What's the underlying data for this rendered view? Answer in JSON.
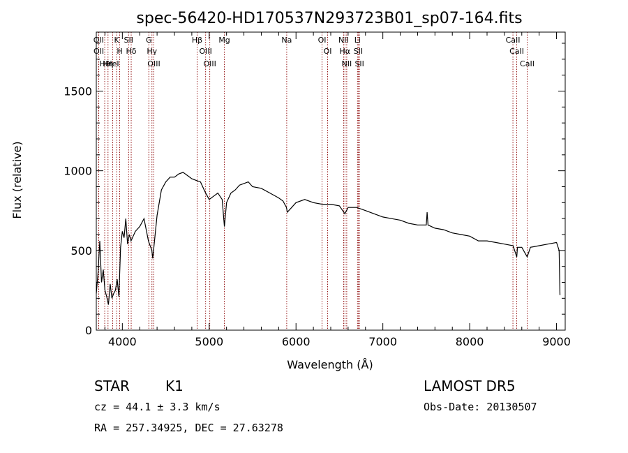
{
  "title": "spec-56420-HD170537N293723B01_sp07-164.fits",
  "chart_data": {
    "type": "line",
    "title": "spec-56420-HD170537N293723B01_sp07-164.fits",
    "xlabel": "Wavelength (Å)",
    "ylabel": "Flux (relative)",
    "xlim": [
      3700,
      9100
    ],
    "ylim": [
      0,
      1870
    ],
    "x_ticks": [
      4000,
      5000,
      6000,
      7000,
      8000,
      9000
    ],
    "y_ticks": [
      0,
      500,
      1000,
      1500
    ],
    "grid": false,
    "series": [
      {
        "x": [
          3700,
          3720,
          3740,
          3760,
          3780,
          3800,
          3820,
          3840,
          3860,
          3880,
          3900,
          3920,
          3940,
          3960,
          3980,
          4000,
          4020,
          4040,
          4060,
          4080,
          4100,
          4150,
          4200,
          4250,
          4300,
          4340,
          4350,
          4400,
          4450,
          4500,
          4550,
          4600,
          4650,
          4700,
          4750,
          4800,
          4850,
          4900,
          4950,
          5000,
          5050,
          5100,
          5150,
          5175,
          5200,
          5250,
          5300,
          5350,
          5400,
          5450,
          5500,
          5600,
          5700,
          5800,
          5850,
          5890,
          5900,
          5950,
          6000,
          6100,
          6200,
          6300,
          6400,
          6500,
          6563,
          6600,
          6700,
          6800,
          6900,
          7000,
          7100,
          7200,
          7300,
          7400,
          7500,
          7510,
          7520,
          7600,
          7700,
          7800,
          7900,
          8000,
          8100,
          8200,
          8300,
          8400,
          8500,
          8542,
          8550,
          8600,
          8662,
          8700,
          8800,
          8900,
          9000,
          9030,
          9040
        ],
        "y": [
          230,
          360,
          560,
          300,
          380,
          250,
          210,
          160,
          290,
          200,
          230,
          250,
          320,
          210,
          520,
          620,
          580,
          700,
          540,
          600,
          560,
          620,
          650,
          700,
          560,
          500,
          450,
          720,
          880,
          930,
          960,
          960,
          980,
          990,
          970,
          950,
          940,
          930,
          870,
          820,
          840,
          860,
          820,
          650,
          800,
          860,
          880,
          910,
          920,
          930,
          900,
          890,
          860,
          830,
          810,
          770,
          740,
          770,
          800,
          820,
          800,
          790,
          790,
          780,
          730,
          770,
          770,
          750,
          730,
          710,
          700,
          690,
          670,
          660,
          660,
          740,
          660,
          640,
          630,
          610,
          600,
          590,
          560,
          560,
          550,
          540,
          530,
          460,
          520,
          520,
          460,
          520,
          530,
          540,
          550,
          500,
          220
        ]
      }
    ],
    "spectral_lines": [
      {
        "label": "Hθ",
        "wl": 3797
      },
      {
        "label": "OII",
        "wl": 3727
      },
      {
        "label": "OII",
        "wl": 3729
      },
      {
        "label": "HeI",
        "wl": 3889
      },
      {
        "label": "Hη",
        "wl": 3835
      },
      {
        "label": "K",
        "wl": 3934
      },
      {
        "label": "H",
        "wl": 3969
      },
      {
        "label": "SII",
        "wl": 4072
      },
      {
        "label": "Hδ",
        "wl": 4102
      },
      {
        "label": "OIII",
        "wl": 4363
      },
      {
        "label": "Hγ",
        "wl": 4341
      },
      {
        "label": "G",
        "wl": 4305
      },
      {
        "label": "Hβ",
        "wl": 4861
      },
      {
        "label": "OIII",
        "wl": 4959
      },
      {
        "label": "OIII",
        "wl": 5007
      },
      {
        "label": "Mg",
        "wl": 5175
      },
      {
        "label": "Na",
        "wl": 5893
      },
      {
        "label": "OI",
        "wl": 6300
      },
      {
        "label": "OI",
        "wl": 6364
      },
      {
        "label": "Hα",
        "wl": 6563
      },
      {
        "label": "NII",
        "wl": 6548
      },
      {
        "label": "NII",
        "wl": 6584
      },
      {
        "label": "SII",
        "wl": 6717
      },
      {
        "label": "Li",
        "wl": 6708
      },
      {
        "label": "SII",
        "wl": 6731
      },
      {
        "label": "CaII",
        "wl": 8498
      },
      {
        "label": "CaII",
        "wl": 8542
      },
      {
        "label": "CaII",
        "wl": 8662
      }
    ]
  },
  "footer": {
    "object_class": "STAR",
    "subclass": "K1",
    "survey": "LAMOST  DR5",
    "redshift": "cz = 44.1 ± 3.3 km/s",
    "obs_date": "Obs-Date: 20130507",
    "coords": "RA = 257.34925, DEC =  27.63278"
  },
  "colors": {
    "line_color": "#000000",
    "marker_color": "#8b0000",
    "background": "#ffffff"
  }
}
